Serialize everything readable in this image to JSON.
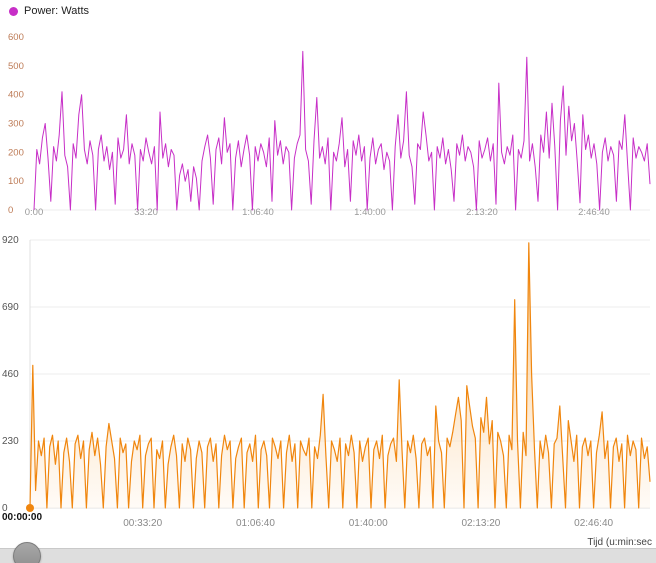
{
  "legend": {
    "label": "Power: Watts"
  },
  "footer": {
    "axis_label": "Tijd (u:min:sec"
  },
  "chart_data": [
    {
      "type": "line",
      "name": "power-watts-line",
      "color": "#c72fc7",
      "ylim": [
        0,
        600
      ],
      "yticks": [
        0,
        100,
        200,
        300,
        400,
        500,
        600
      ],
      "xticks": [
        {
          "label": "0:00",
          "t": 0
        },
        {
          "label": "33:20",
          "t": 2000
        },
        {
          "label": "1:06:40",
          "t": 4000
        },
        {
          "label": "1:40:00",
          "t": 6000
        },
        {
          "label": "2:13:20",
          "t": 8000
        },
        {
          "label": "2:46:40",
          "t": 10000
        }
      ],
      "dt": 50,
      "x_max": 11000,
      "values": [
        0,
        210,
        160,
        250,
        300,
        180,
        30,
        220,
        170,
        260,
        410,
        190,
        150,
        0,
        230,
        180,
        330,
        400,
        210,
        160,
        240,
        190,
        0,
        210,
        260,
        170,
        220,
        140,
        200,
        20,
        250,
        180,
        210,
        330,
        160,
        230,
        190,
        0,
        210,
        170,
        250,
        200,
        160,
        220,
        0,
        340,
        180,
        230,
        150,
        210,
        190,
        0,
        120,
        160,
        100,
        140,
        30,
        150,
        110,
        0,
        170,
        220,
        260,
        180,
        20,
        210,
        250,
        160,
        320,
        200,
        230,
        0,
        180,
        240,
        150,
        210,
        260,
        190,
        0,
        220,
        170,
        230,
        200,
        150,
        250,
        30,
        310,
        190,
        240,
        160,
        220,
        200,
        0,
        180,
        230,
        260,
        550,
        210,
        170,
        20,
        240,
        390,
        180,
        220,
        160,
        250,
        0,
        200,
        170,
        230,
        320,
        150,
        210,
        30,
        240,
        190,
        260,
        170,
        220,
        0,
        180,
        250,
        160,
        210,
        230,
        140,
        200,
        170,
        0,
        220,
        330,
        180,
        240,
        410,
        190,
        150,
        20,
        230,
        210,
        340,
        260,
        170,
        200,
        0,
        220,
        180,
        250,
        160,
        210,
        140,
        30,
        230,
        190,
        260,
        170,
        220,
        200,
        150,
        0,
        240,
        180,
        210,
        250,
        170,
        230,
        20,
        440,
        200,
        160,
        220,
        190,
        260,
        0,
        210,
        180,
        240,
        530,
        170,
        230,
        150,
        30,
        260,
        200,
        340,
        180,
        370,
        220,
        0,
        310,
        430,
        190,
        360,
        240,
        300,
        170,
        25,
        330,
        210,
        260,
        180,
        230,
        160,
        0,
        200,
        250,
        170,
        220,
        190,
        30,
        240,
        210,
        330,
        160,
        0,
        250,
        180,
        220,
        200,
        170,
        230,
        90
      ]
    },
    {
      "type": "area",
      "name": "power-watts-area",
      "color": "#f0860e",
      "fill_top": "#f5b25e",
      "fill_bottom": "#fff8f0",
      "origin_label": "00:00:00",
      "origin_dot": true,
      "ylim": [
        0,
        920
      ],
      "yticks": [
        0,
        230,
        460,
        690,
        920
      ],
      "xticks": [
        {
          "label": "00:33:20",
          "t": 2000
        },
        {
          "label": "01:06:40",
          "t": 4000
        },
        {
          "label": "01:40:00",
          "t": 6000
        },
        {
          "label": "02:13:20",
          "t": 8000
        },
        {
          "label": "02:46:40",
          "t": 10000
        }
      ],
      "dt": 50,
      "x_max": 11000,
      "values": [
        0,
        490,
        60,
        230,
        180,
        240,
        0,
        210,
        250,
        150,
        230,
        0,
        190,
        240,
        160,
        0,
        220,
        250,
        170,
        230,
        0,
        200,
        260,
        180,
        240,
        150,
        0,
        210,
        290,
        230,
        170,
        0,
        240,
        190,
        220,
        0,
        160,
        230,
        200,
        250,
        0,
        180,
        220,
        240,
        0,
        200,
        170,
        230,
        0,
        150,
        210,
        250,
        180,
        0,
        220,
        160,
        240,
        200,
        0,
        170,
        230,
        190,
        0,
        210,
        240,
        160,
        220,
        0,
        180,
        250,
        200,
        230,
        0,
        170,
        210,
        240,
        0,
        190,
        220,
        160,
        250,
        0,
        200,
        230,
        180,
        0,
        240,
        210,
        170,
        230,
        0,
        190,
        250,
        160,
        220,
        0,
        230,
        200,
        180,
        240,
        0,
        210,
        170,
        250,
        390,
        180,
        0,
        230,
        200,
        160,
        240,
        0,
        220,
        180,
        250,
        190,
        0,
        230,
        160,
        210,
        240,
        0,
        200,
        230,
        170,
        250,
        0,
        180,
        220,
        240,
        160,
        440,
        200,
        0,
        230,
        190,
        250,
        170,
        0,
        220,
        240,
        180,
        210,
        0,
        350,
        230,
        190,
        0,
        240,
        210,
        260,
        320,
        380,
        300,
        0,
        420,
        350,
        280,
        240,
        0,
        310,
        260,
        380,
        220,
        300,
        0,
        260,
        230,
        180,
        0,
        250,
        200,
        715,
        230,
        0,
        260,
        180,
        910,
        460,
        200,
        0,
        230,
        170,
        250,
        190,
        0,
        220,
        240,
        350,
        180,
        0,
        300,
        230,
        160,
        250,
        0,
        210,
        240,
        180,
        230,
        0,
        190,
        250,
        330,
        170,
        230,
        0,
        210,
        240,
        160,
        220,
        0,
        250,
        180,
        230,
        200,
        0,
        240,
        170,
        210,
        90
      ]
    }
  ]
}
